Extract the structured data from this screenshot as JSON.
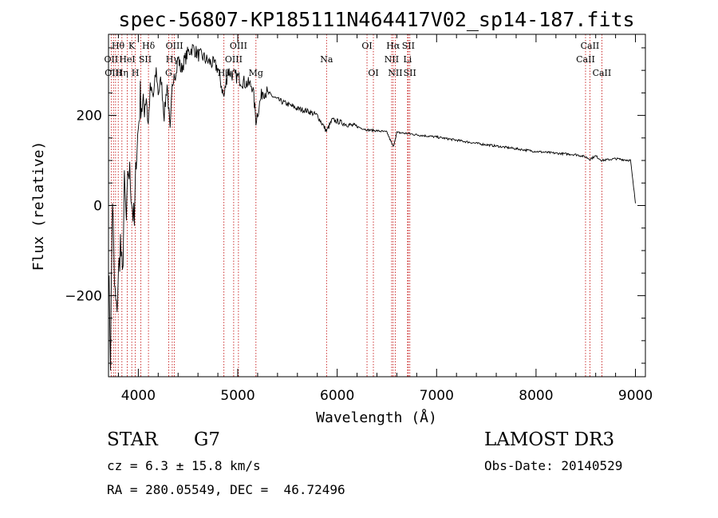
{
  "chart_data": {
    "type": "line",
    "title": "spec-56807-KP185111N464417V02_sp14-187.fits",
    "xlabel": "Wavelength (Å)",
    "ylabel": "Flux (relative)",
    "xlim": [
      3700,
      9100
    ],
    "ylim": [
      -380,
      380
    ],
    "x_ticks": [
      4000,
      5000,
      6000,
      7000,
      8000,
      9000
    ],
    "x_tick_labels": [
      "4000",
      "5000",
      "6000",
      "7000",
      "8000",
      "9000"
    ],
    "y_ticks": [
      -200,
      0,
      200
    ],
    "y_tick_labels": [
      "−200",
      "0",
      "200"
    ],
    "series": [
      {
        "name": "spectrum",
        "x": [
          3700,
          3720,
          3740,
          3760,
          3780,
          3800,
          3820,
          3840,
          3860,
          3880,
          3900,
          3920,
          3940,
          3960,
          3980,
          4000,
          4020,
          4050,
          4080,
          4100,
          4120,
          4150,
          4180,
          4200,
          4230,
          4260,
          4290,
          4320,
          4340,
          4360,
          4380,
          4400,
          4430,
          4460,
          4500,
          4550,
          4600,
          4650,
          4700,
          4750,
          4800,
          4861,
          4900,
          4950,
          5000,
          5050,
          5100,
          5150,
          5183,
          5250,
          5300,
          5400,
          5500,
          5600,
          5700,
          5800,
          5893,
          5950,
          6000,
          6100,
          6200,
          6300,
          6400,
          6500,
          6563,
          6600,
          6700,
          6800,
          7000,
          7200,
          7400,
          7600,
          7800,
          8000,
          8200,
          8400,
          8498,
          8542,
          8600,
          8662,
          8800,
          8950,
          9000
        ],
        "y": [
          -120,
          -340,
          20,
          -180,
          -240,
          -160,
          -80,
          -170,
          40,
          -40,
          80,
          60,
          0,
          -50,
          120,
          170,
          240,
          210,
          250,
          180,
          260,
          240,
          300,
          250,
          280,
          200,
          270,
          160,
          260,
          300,
          290,
          330,
          300,
          320,
          340,
          350,
          335,
          330,
          320,
          315,
          305,
          240,
          300,
          290,
          285,
          275,
          270,
          265,
          190,
          255,
          250,
          235,
          225,
          215,
          210,
          200,
          165,
          190,
          187,
          180,
          175,
          168,
          166,
          163,
          130,
          162,
          160,
          157,
          152,
          145,
          138,
          132,
          126,
          120,
          116,
          113,
          108,
          103,
          110,
          100,
          104,
          100,
          5
        ]
      }
    ],
    "line_positions": [
      3727,
      3750,
      3771,
      3798,
      3835,
      3889,
      3934,
      3970,
      4026,
      4102,
      4305,
      4341,
      4363,
      4861,
      4959,
      5007,
      5183,
      5893,
      6300,
      6364,
      6548,
      6563,
      6584,
      6708,
      6716,
      6731,
      8498,
      8542,
      8662
    ],
    "line_labels": [
      {
        "text": "Hθ",
        "x": 3797,
        "row": 1
      },
      {
        "text": "K",
        "x": 3934,
        "row": 1
      },
      {
        "text": "Hδ",
        "x": 4102,
        "row": 1
      },
      {
        "text": "OIII",
        "x": 4363,
        "row": 1
      },
      {
        "text": "OIII",
        "x": 5007,
        "row": 1
      },
      {
        "text": "Na",
        "x": 5893,
        "row": 2
      },
      {
        "text": "OI",
        "x": 6300,
        "row": 1
      },
      {
        "text": "OI",
        "x": 6364,
        "row": 3
      },
      {
        "text": "Hα",
        "x": 6563,
        "row": 1
      },
      {
        "text": "SII",
        "x": 6716,
        "row": 1
      },
      {
        "text": "NII",
        "x": 6548,
        "row": 2
      },
      {
        "text": "Li",
        "x": 6708,
        "row": 2
      },
      {
        "text": "NII",
        "x": 6584,
        "row": 3
      },
      {
        "text": "SII",
        "x": 6731,
        "row": 3
      },
      {
        "text": "OII",
        "x": 3727,
        "row": 2
      },
      {
        "text": "HeI",
        "x": 3889,
        "row": 2
      },
      {
        "text": "SII",
        "x": 4069,
        "row": 2
      },
      {
        "text": "Hγ",
        "x": 4341,
        "row": 2
      },
      {
        "text": "OIII",
        "x": 4959,
        "row": 2
      },
      {
        "text": "OIII",
        "x": 3750,
        "row": 3
      },
      {
        "text": "Hη",
        "x": 3835,
        "row": 3
      },
      {
        "text": "H",
        "x": 3970,
        "row": 3
      },
      {
        "text": "G",
        "x": 4305,
        "row": 3
      },
      {
        "text": "Hβ",
        "x": 4861,
        "row": 3
      },
      {
        "text": "Mg",
        "x": 5183,
        "row": 3
      },
      {
        "text": "CaII",
        "x": 8542,
        "row": 1
      },
      {
        "text": "CaII",
        "x": 8498,
        "row": 2
      },
      {
        "text": "CaII",
        "x": 8662,
        "row": 3
      }
    ]
  },
  "info": {
    "object_class": "STAR",
    "subclass": "G7",
    "survey": "LAMOST DR3",
    "redshift": "cz = 6.3 ± 15.8 km/s",
    "obs_date": "Obs-Date: 20140529",
    "coords": "RA = 280.05549, DEC =  46.72496"
  }
}
